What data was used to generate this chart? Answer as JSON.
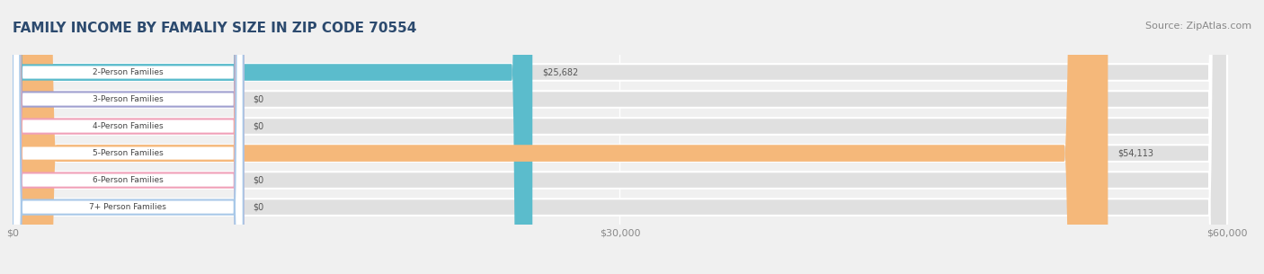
{
  "title": "FAMILY INCOME BY FAMALIY SIZE IN ZIP CODE 70554",
  "source": "Source: ZipAtlas.com",
  "categories": [
    "2-Person Families",
    "3-Person Families",
    "4-Person Families",
    "5-Person Families",
    "6-Person Families",
    "7+ Person Families"
  ],
  "values": [
    25682,
    0,
    0,
    54113,
    0,
    0
  ],
  "bar_colors": [
    "#5bbccc",
    "#a0a0d0",
    "#f0a0b8",
    "#f5b87a",
    "#f0a0b8",
    "#a8c8e8"
  ],
  "label_colors": [
    "#5bbccc",
    "#a0a0d0",
    "#f0a0b8",
    "#f5b87a",
    "#f0a0b8",
    "#a8c8e8"
  ],
  "value_labels": [
    "$25,682",
    "$0",
    "$0",
    "$54,113",
    "$0",
    "$0"
  ],
  "xlim": [
    0,
    60000
  ],
  "xticks": [
    0,
    30000,
    60000
  ],
  "xticklabels": [
    "$0",
    "$30,000",
    "$60,000"
  ],
  "background_color": "#f0f0f0",
  "bar_background": "#e8e8e8",
  "title_color": "#2c4a6e",
  "source_color": "#888888",
  "label_bg_color": "#ffffff",
  "title_fontsize": 11,
  "source_fontsize": 8,
  "tick_fontsize": 8,
  "bar_height": 0.62,
  "bar_spacing": 1.0
}
